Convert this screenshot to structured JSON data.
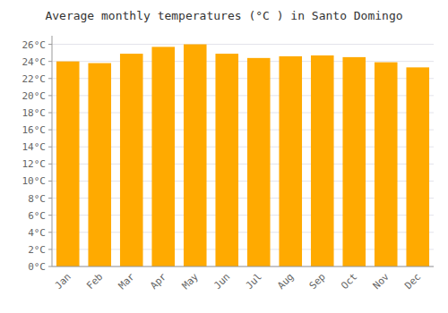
{
  "chart_data": {
    "type": "bar",
    "title": "Average monthly temperatures (°C ) in Santo Domingo",
    "categories": [
      "Jan",
      "Feb",
      "Mar",
      "Apr",
      "May",
      "Jun",
      "Jul",
      "Aug",
      "Sep",
      "Oct",
      "Nov",
      "Dec"
    ],
    "values": [
      24.0,
      23.8,
      24.9,
      25.7,
      26.0,
      24.9,
      24.4,
      24.6,
      24.7,
      24.5,
      23.9,
      23.3
    ],
    "color": "#FFAA00",
    "ylim": [
      0,
      27
    ],
    "yticks": [
      {
        "value": 0,
        "label": "0°C"
      },
      {
        "value": 2,
        "label": "2°C"
      },
      {
        "value": 4,
        "label": "4°C"
      },
      {
        "value": 6,
        "label": "6°C"
      },
      {
        "value": 8,
        "label": "8°C"
      },
      {
        "value": 10,
        "label": "10°C"
      },
      {
        "value": 12,
        "label": "12°C"
      },
      {
        "value": 14,
        "label": "14°C"
      },
      {
        "value": 16,
        "label": "16°C"
      },
      {
        "value": 18,
        "label": "18°C"
      },
      {
        "value": 20,
        "label": "20°C"
      },
      {
        "value": 22,
        "label": "22°C"
      },
      {
        "value": 24,
        "label": "24°C"
      },
      {
        "value": 26,
        "label": "26°C"
      }
    ],
    "grid": true
  }
}
